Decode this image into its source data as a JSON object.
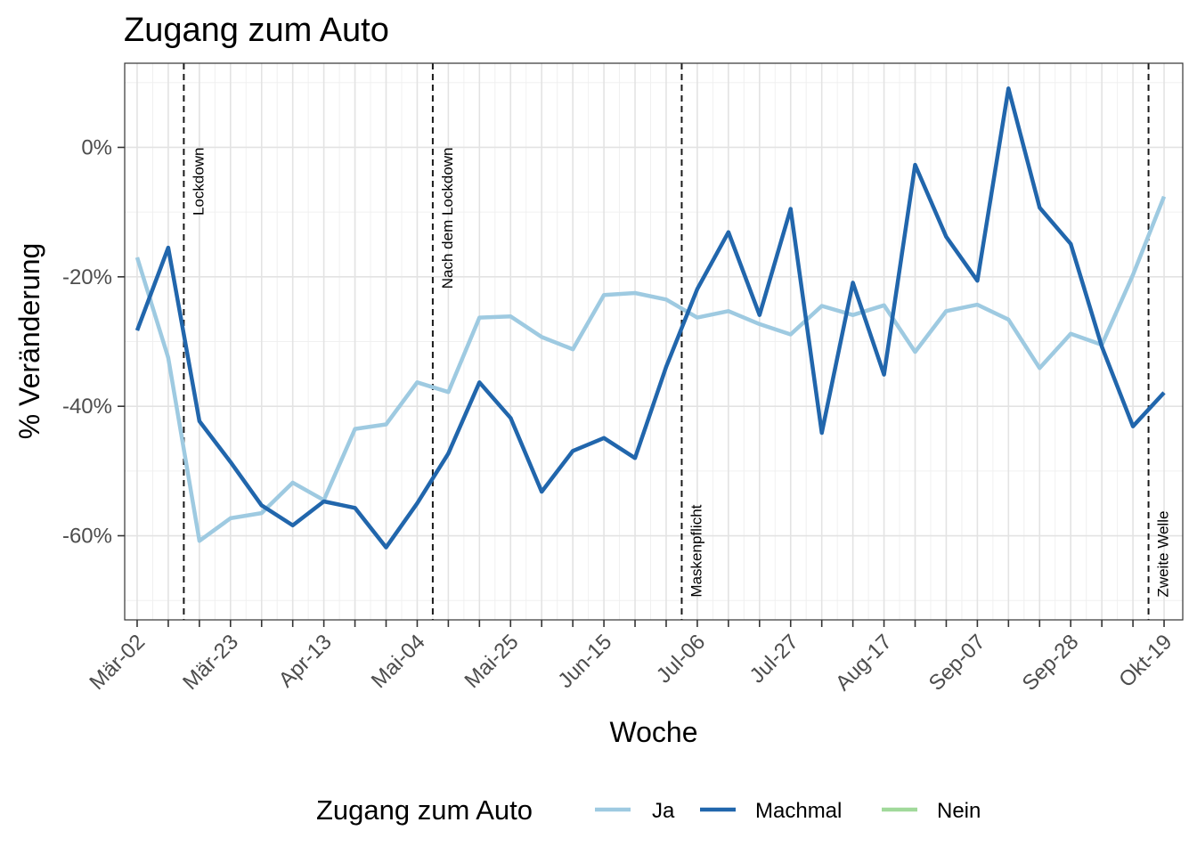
{
  "chart_data": {
    "type": "line",
    "title": "Zugang zum Auto",
    "xlabel": "Woche",
    "ylabel": "% Veränderung",
    "x_tick_labels": [
      "Mär-02",
      "Mär-23",
      "Apr-13",
      "Mai-04",
      "Mai-25",
      "Jun-15",
      "Jul-06",
      "Jul-27",
      "Aug-17",
      "Sep-07",
      "Sep-28",
      "Okt-19"
    ],
    "x_tick_index": [
      0,
      3,
      6,
      9,
      12,
      15,
      18,
      21,
      24,
      27,
      30,
      33
    ],
    "x_range_weeks": [
      -0.4,
      33.6
    ],
    "yticks": [
      0,
      -20,
      -40,
      -60
    ],
    "ytick_labels": [
      "0%",
      "-20%",
      "-40%",
      "-60%"
    ],
    "ylim": [
      -73,
      13
    ],
    "grid": true,
    "legend": {
      "title": "Zugang zum Auto",
      "position": "bottom",
      "entries": [
        "Ja",
        "Machmal",
        "Nein"
      ]
    },
    "annotations": [
      {
        "label": "Lockdown",
        "x_week": 1.5
      },
      {
        "label": "Nach dem Lockdown",
        "x_week": 9.5
      },
      {
        "label": "Maskenpflicht",
        "x_week": 17.5
      },
      {
        "label": "Zweite Welle",
        "x_week": 32.5
      }
    ],
    "series": [
      {
        "name": "Ja",
        "color": "#9ECAE1",
        "values": [
          -17,
          -32.5,
          -60.8,
          -57.3,
          -56.5,
          -51.8,
          -54.5,
          -43.5,
          -42.8,
          -36.3,
          -37.8,
          -26.3,
          -26.1,
          -29.3,
          -31.2,
          -22.8,
          -22.5,
          -23.5,
          -26.3,
          -25.3,
          -27.3,
          -28.9,
          -24.5,
          -25.9,
          -24.4,
          -31.6,
          -25.3,
          -24.3,
          -26.6,
          -34.1,
          -28.8,
          -30.5,
          -19.7,
          -7.6
        ]
      },
      {
        "name": "Machmal",
        "color": "#2166AC",
        "values": [
          -28.3,
          -15.5,
          -42.3,
          -48.6,
          -55.3,
          -58.4,
          -54.7,
          -55.7,
          -61.8,
          -55.0,
          -47.3,
          -36.3,
          -41.8,
          -53.2,
          -46.9,
          -44.9,
          -48.0,
          -33.9,
          -21.9,
          -13.1,
          -25.9,
          -9.5,
          -44.1,
          -20.9,
          -35.1,
          -2.7,
          -13.8,
          -20.6,
          9.1,
          -9.3,
          -14.9,
          -30.8,
          -43.1,
          -37.9
        ]
      },
      {
        "name": "Nein",
        "color": "#A1D99B",
        "values": []
      }
    ]
  }
}
